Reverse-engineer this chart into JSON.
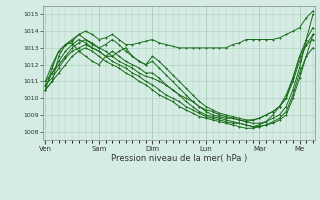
{
  "bg_color": "#d4ece3",
  "grid_color": "#aacfba",
  "line_color": "#1a6b1a",
  "marker_color": "#1a6b1a",
  "xlabel": "Pression niveau de la mer( hPa )",
  "ylim": [
    1007.5,
    1015.5
  ],
  "yticks": [
    1008,
    1009,
    1010,
    1011,
    1012,
    1013,
    1014,
    1015
  ],
  "day_labels": [
    "Ven",
    "Sam",
    "Dim",
    "Lun",
    "Mar",
    "Me"
  ],
  "day_positions": [
    0,
    48,
    96,
    144,
    192,
    228
  ],
  "xlim": [
    -2,
    242
  ],
  "series": [
    {
      "x": [
        0,
        6,
        12,
        18,
        24,
        30,
        36,
        42,
        48,
        54,
        60,
        66,
        72,
        78,
        84,
        90,
        96,
        102,
        108,
        114,
        120,
        126,
        132,
        138,
        144,
        150,
        156,
        162,
        168,
        174,
        180,
        186,
        192,
        198,
        204,
        210,
        216,
        222,
        228,
        234,
        240
      ],
      "y": [
        1010.5,
        1011.0,
        1012.5,
        1013.2,
        1013.5,
        1013.8,
        1014.0,
        1013.8,
        1013.5,
        1013.6,
        1013.8,
        1013.5,
        1013.2,
        1013.2,
        1013.3,
        1013.4,
        1013.5,
        1013.3,
        1013.2,
        1013.1,
        1013.0,
        1013.0,
        1013.0,
        1013.0,
        1013.0,
        1013.0,
        1013.0,
        1013.0,
        1013.2,
        1013.3,
        1013.5,
        1013.5,
        1013.5,
        1013.5,
        1013.5,
        1013.6,
        1013.8,
        1014.0,
        1014.2,
        1014.8,
        1015.2
      ],
      "marker": "+"
    },
    {
      "x": [
        0,
        6,
        12,
        18,
        24,
        30,
        36,
        42,
        48,
        54,
        60,
        66,
        72,
        78,
        84,
        90,
        96,
        102,
        108,
        114,
        120,
        126,
        132,
        138,
        144,
        150,
        156,
        162,
        168,
        174,
        180,
        186,
        192,
        198,
        204,
        210,
        216,
        222,
        228,
        234,
        240
      ],
      "y": [
        1011.0,
        1011.5,
        1012.0,
        1012.5,
        1013.0,
        1013.3,
        1013.5,
        1013.3,
        1013.0,
        1012.8,
        1012.5,
        1012.2,
        1012.0,
        1011.8,
        1011.5,
        1011.3,
        1011.2,
        1011.0,
        1010.8,
        1010.5,
        1010.2,
        1010.0,
        1009.8,
        1009.5,
        1009.3,
        1009.2,
        1009.0,
        1008.9,
        1008.8,
        1008.7,
        1008.6,
        1008.5,
        1008.5,
        1008.6,
        1008.8,
        1009.0,
        1009.5,
        1010.5,
        1011.8,
        1013.5,
        1015.0
      ],
      "marker": "+"
    },
    {
      "x": [
        0,
        6,
        12,
        18,
        24,
        30,
        36,
        42,
        48,
        54,
        60,
        66,
        72,
        78,
        84,
        90,
        96,
        102,
        108,
        114,
        120,
        126,
        132,
        138,
        144,
        150,
        156,
        162,
        168,
        174,
        180,
        186,
        192,
        198,
        204,
        210,
        216,
        222,
        228,
        234,
        240
      ],
      "y": [
        1010.8,
        1011.2,
        1011.8,
        1012.4,
        1012.8,
        1013.0,
        1013.2,
        1013.0,
        1012.8,
        1012.5,
        1012.2,
        1012.0,
        1011.8,
        1011.5,
        1011.3,
        1011.0,
        1010.8,
        1010.5,
        1010.2,
        1010.0,
        1009.8,
        1009.5,
        1009.3,
        1009.1,
        1008.9,
        1008.8,
        1008.7,
        1008.6,
        1008.5,
        1008.5,
        1008.4,
        1008.3,
        1008.3,
        1008.4,
        1008.5,
        1008.7,
        1009.0,
        1010.0,
        1011.2,
        1012.5,
        1013.8
      ],
      "marker": "+"
    },
    {
      "x": [
        0,
        6,
        12,
        18,
        24,
        30,
        36,
        42,
        48,
        54,
        60,
        66,
        72,
        78,
        84,
        90,
        96,
        102,
        108,
        114,
        120,
        126,
        132,
        138,
        144,
        150,
        156,
        162,
        168,
        174,
        180,
        186,
        192,
        198,
        204,
        210,
        216,
        222,
        228,
        234,
        240
      ],
      "y": [
        1010.5,
        1011.0,
        1011.5,
        1012.0,
        1012.5,
        1012.8,
        1013.0,
        1012.8,
        1012.5,
        1012.2,
        1012.0,
        1011.8,
        1011.5,
        1011.3,
        1011.0,
        1010.8,
        1010.5,
        1010.2,
        1010.0,
        1009.8,
        1009.5,
        1009.3,
        1009.1,
        1008.9,
        1008.8,
        1008.7,
        1008.6,
        1008.5,
        1008.4,
        1008.3,
        1008.2,
        1008.2,
        1008.3,
        1008.4,
        1008.6,
        1008.8,
        1009.2,
        1010.2,
        1011.5,
        1012.5,
        1013.0
      ],
      "marker": "+"
    },
    {
      "x": [
        0,
        6,
        12,
        18,
        24,
        30,
        36,
        42,
        48,
        54,
        60,
        66,
        72,
        78,
        84,
        90,
        96,
        102,
        108,
        114,
        120,
        126,
        132,
        138,
        144,
        150,
        156,
        162,
        168,
        174,
        180,
        186,
        192,
        198,
        204,
        210,
        216,
        222,
        228,
        234,
        240
      ],
      "y": [
        1010.7,
        1011.5,
        1012.2,
        1012.8,
        1013.2,
        1013.5,
        1013.3,
        1013.0,
        1012.8,
        1012.5,
        1012.5,
        1012.8,
        1013.0,
        1012.5,
        1012.2,
        1012.0,
        1012.5,
        1012.2,
        1011.8,
        1011.4,
        1011.0,
        1010.6,
        1010.2,
        1009.8,
        1009.5,
        1009.3,
        1009.1,
        1009.0,
        1008.9,
        1008.8,
        1008.7,
        1008.7,
        1008.8,
        1009.0,
        1009.2,
        1009.5,
        1010.0,
        1011.0,
        1012.2,
        1013.2,
        1013.8
      ],
      "marker": "+"
    },
    {
      "x": [
        0,
        6,
        12,
        18,
        24,
        30,
        36,
        42,
        48,
        54,
        60,
        66,
        72,
        78,
        84,
        90,
        96,
        102,
        108,
        114,
        120,
        126,
        132,
        138,
        144,
        150,
        156,
        162,
        168,
        174,
        180,
        186,
        192,
        198,
        204,
        210,
        216,
        222,
        228,
        234,
        240
      ],
      "y": [
        1010.5,
        1011.8,
        1012.8,
        1013.2,
        1013.4,
        1013.8,
        1013.5,
        1013.2,
        1013.0,
        1013.2,
        1013.5,
        1013.2,
        1012.8,
        1012.5,
        1012.2,
        1012.0,
        1012.2,
        1011.8,
        1011.4,
        1011.0,
        1010.6,
        1010.2,
        1009.8,
        1009.5,
        1009.2,
        1009.0,
        1008.9,
        1008.8,
        1008.8,
        1008.7,
        1008.6,
        1008.7,
        1008.8,
        1009.0,
        1009.2,
        1009.5,
        1010.0,
        1011.2,
        1012.5,
        1013.5,
        1014.2
      ],
      "marker": "+"
    },
    {
      "x": [
        0,
        6,
        12,
        18,
        24,
        30,
        36,
        42,
        48,
        54,
        60,
        66,
        72,
        78,
        84,
        90,
        96,
        102,
        108,
        114,
        120,
        126,
        132,
        138,
        144,
        150,
        156,
        162,
        168,
        174,
        180,
        186,
        192,
        198,
        204,
        210,
        216,
        222,
        228,
        234,
        240
      ],
      "y": [
        1011.0,
        1012.0,
        1012.8,
        1013.2,
        1013.3,
        1012.8,
        1012.5,
        1012.2,
        1012.0,
        1012.5,
        1012.8,
        1012.5,
        1012.2,
        1012.0,
        1011.8,
        1011.5,
        1011.5,
        1011.2,
        1010.8,
        1010.5,
        1010.2,
        1009.8,
        1009.5,
        1009.2,
        1009.0,
        1008.9,
        1008.8,
        1008.7,
        1008.6,
        1008.5,
        1008.4,
        1008.3,
        1008.4,
        1008.6,
        1009.0,
        1009.5,
        1010.2,
        1011.2,
        1012.5,
        1013.2,
        1013.5
      ],
      "marker": "+"
    }
  ]
}
